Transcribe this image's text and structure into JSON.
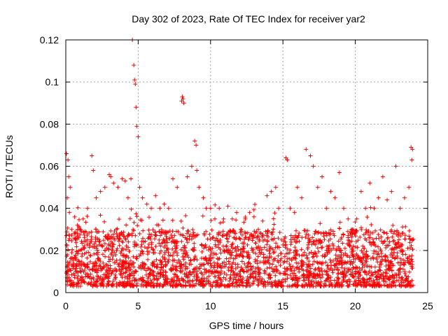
{
  "chart_data": {
    "type": "scatter",
    "title": "Day 302 of 2023, Rate Of TEC Index for receiver yar2",
    "xlabel": "GPS time / hours",
    "ylabel": "ROTI / TECUs",
    "xlim": [
      0,
      25
    ],
    "ylim": [
      0,
      0.12
    ],
    "x_ticks": [
      "0",
      "5",
      "10",
      "15",
      "20",
      "25"
    ],
    "y_ticks": [
      "0",
      "0.02",
      "0.04",
      "0.06",
      "0.08",
      "0.1",
      "0.12"
    ],
    "grid": true,
    "marker": "plus",
    "color": "#ff0000",
    "series": [
      {
        "x": [
          0.05,
          0.15,
          0.2,
          0.3,
          0.1,
          0.25,
          0.4,
          0.6,
          0.8,
          1.0,
          1.2,
          1.5,
          1.8,
          1.9,
          2.1,
          2.4,
          2.7,
          3.0,
          3.1,
          3.3,
          3.6,
          3.9,
          4.1,
          4.3,
          4.5,
          4.6,
          4.7,
          4.75,
          4.8,
          4.85,
          4.9,
          5.0,
          5.1,
          5.3,
          5.6,
          5.9,
          6.2,
          6.5,
          6.8,
          7.1,
          7.4,
          7.7,
          8.0,
          8.05,
          8.1,
          8.15,
          8.4,
          8.7,
          8.9,
          9.0,
          9.05,
          9.2,
          9.5,
          9.7,
          10.0,
          10.3,
          10.6,
          10.9,
          11.2,
          11.5,
          11.8,
          12.1,
          12.4,
          12.7,
          13.0,
          13.3,
          13.6,
          13.9,
          14.2,
          14.5,
          14.7,
          14.9,
          15.2,
          15.3,
          15.5,
          15.8,
          16.0,
          16.3,
          16.6,
          16.9,
          17.1,
          17.4,
          17.7,
          18.0,
          18.3,
          18.6,
          18.9,
          19.2,
          19.5,
          19.8,
          20.1,
          20.4,
          20.7,
          21.0,
          21.3,
          21.6,
          21.9,
          22.2,
          22.5,
          22.8,
          23.1,
          23.4,
          23.7,
          23.85,
          23.9,
          23.95
        ],
        "y": [
          0.066,
          0.063,
          0.055,
          0.05,
          0.045,
          0.038,
          0.03,
          0.028,
          0.032,
          0.03,
          0.035,
          0.04,
          0.065,
          0.058,
          0.045,
          0.048,
          0.05,
          0.056,
          0.055,
          0.052,
          0.05,
          0.054,
          0.053,
          0.045,
          0.054,
          0.12,
          0.108,
          0.101,
          0.099,
          0.088,
          0.079,
          0.074,
          0.05,
          0.045,
          0.042,
          0.04,
          0.046,
          0.04,
          0.042,
          0.04,
          0.054,
          0.05,
          0.091,
          0.093,
          0.092,
          0.09,
          0.055,
          0.06,
          0.072,
          0.07,
          0.058,
          0.05,
          0.045,
          0.04,
          0.04,
          0.035,
          0.04,
          0.035,
          0.041,
          0.035,
          0.038,
          0.03,
          0.035,
          0.038,
          0.036,
          0.03,
          0.034,
          0.046,
          0.048,
          0.05,
          0.04,
          0.025,
          0.064,
          0.063,
          0.04,
          0.038,
          0.05,
          0.045,
          0.068,
          0.065,
          0.06,
          0.05,
          0.055,
          0.04,
          0.048,
          0.045,
          0.057,
          0.04,
          0.035,
          0.03,
          0.035,
          0.048,
          0.04,
          0.052,
          0.04,
          0.045,
          0.055,
          0.044,
          0.048,
          0.06,
          0.04,
          0.045,
          0.05,
          0.069,
          0.063,
          0.068
        ]
      }
    ],
    "noise_band": {
      "x_start": 0,
      "x_end": 24,
      "y_low": 0.003,
      "y_high": 0.03,
      "gaps": [
        [
          4.95,
          5.05
        ],
        [
          15.35,
          15.45
        ],
        [
          16.15,
          16.25
        ]
      ]
    }
  }
}
